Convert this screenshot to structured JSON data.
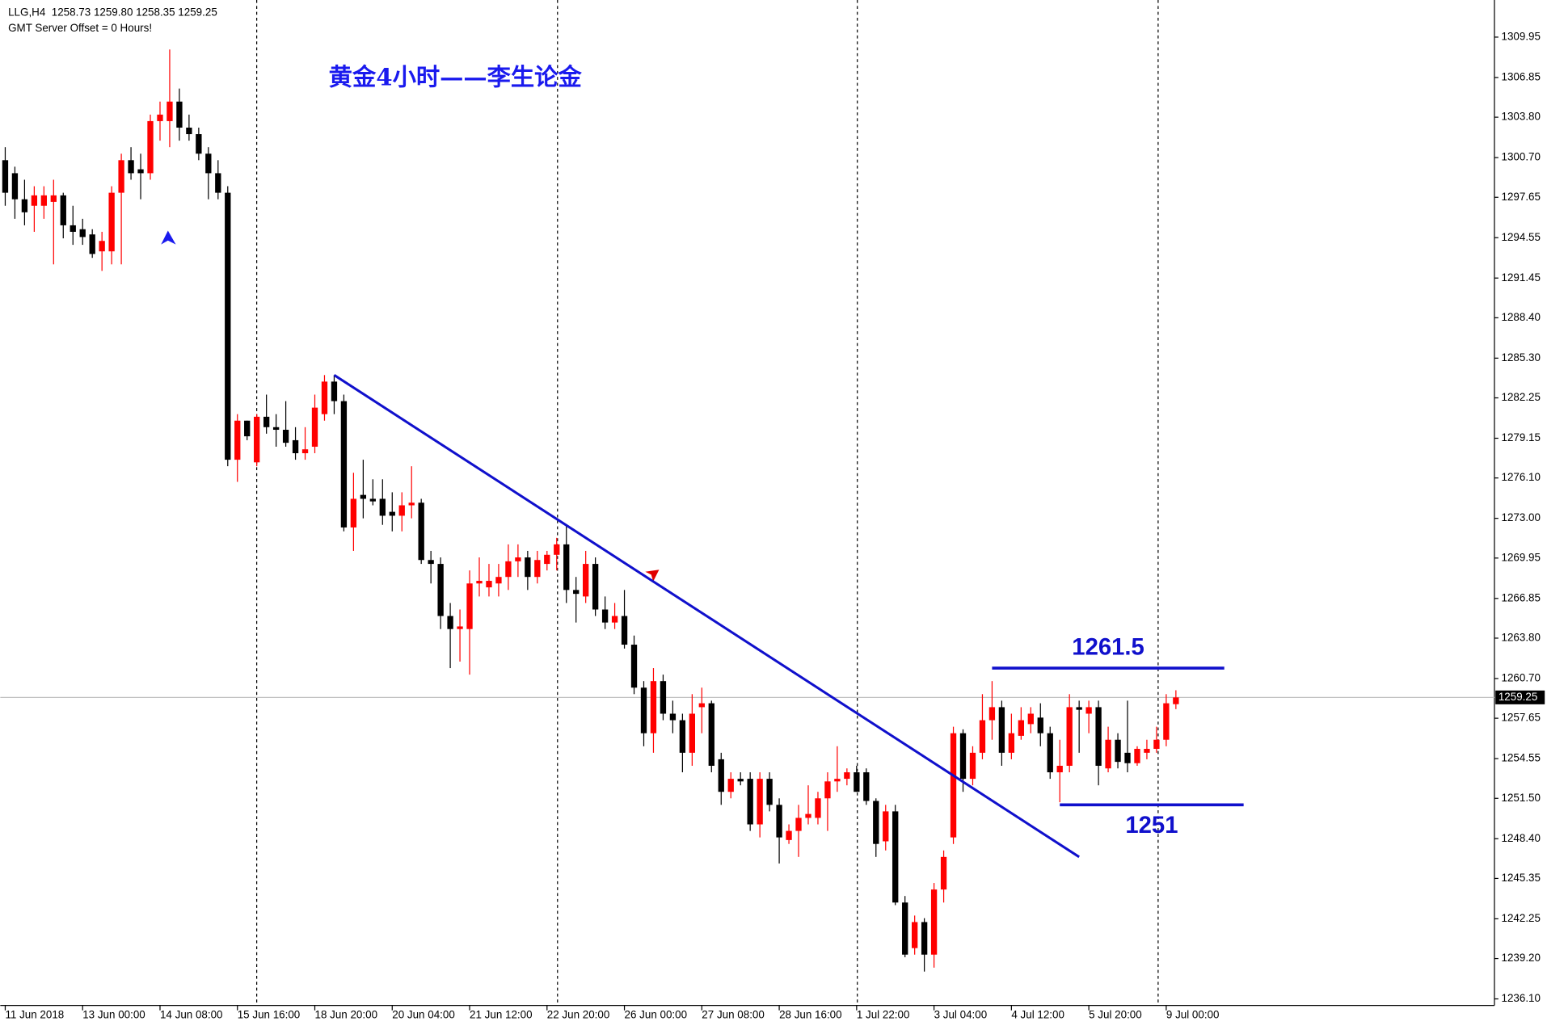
{
  "chart_data": {
    "type": "candlestick",
    "header": "LLG,H4  1258.73 1259.80 1258.35 1259.25",
    "subheader": "GMT Server Offset = 0 Hours!",
    "title": "黄金4小时——李生论金",
    "up_color": "#ff0000",
    "down_color": "#000000",
    "line_color": "#1010cc",
    "categories": [
      "11 Jun 2018",
      null,
      null,
      null,
      null,
      null,
      null,
      null,
      "13 Jun 00:00",
      null,
      null,
      null,
      null,
      null,
      null,
      null,
      "14 Jun 08:00",
      null,
      null,
      null,
      null,
      null,
      null,
      null,
      "15 Jun 16:00",
      null,
      null,
      null,
      null,
      null,
      null,
      null,
      "18 Jun 20:00",
      null,
      null,
      null,
      null,
      null,
      null,
      null,
      "20 Jun 04:00",
      null,
      null,
      null,
      null,
      null,
      null,
      null,
      "21 Jun 12:00",
      null,
      null,
      null,
      null,
      null,
      null,
      null,
      "22 Jun 20:00",
      null,
      null,
      null,
      null,
      null,
      null,
      null,
      "26 Jun 00:00",
      null,
      null,
      null,
      null,
      null,
      null,
      null,
      "27 Jun 08:00",
      null,
      null,
      null,
      null,
      null,
      null,
      null,
      "28 Jun 16:00",
      null,
      null,
      null,
      null,
      null,
      null,
      null,
      "1 Jul 22:00",
      null,
      null,
      null,
      null,
      null,
      null,
      null,
      "3 Jul 04:00",
      null,
      null,
      null,
      null,
      null,
      null,
      null,
      "4 Jul 12:00",
      null,
      null,
      null,
      null,
      null,
      null,
      null,
      "5 Jul 20:00",
      null,
      null,
      null,
      null,
      null,
      null,
      null,
      "9 Jul 00:00",
      null
    ],
    "open": [
      1300.5,
      1299.5,
      1297.5,
      1297,
      1297,
      1297.3,
      1297.8,
      1295.5,
      1295.2,
      1294.8,
      1293.5,
      1293.5,
      1298,
      1300.5,
      1299.8,
      1299.5,
      1303.5,
      1303.5,
      1305,
      1303,
      1302.5,
      1301,
      1299.5,
      1298,
      1277.5,
      1280.5,
      1277.3,
      1280.8,
      1280,
      1279.8,
      1279,
      1278,
      1278.5,
      1281,
      1283.5,
      1282,
      1272.3,
      1274.8,
      1274.5,
      1274.5,
      1273.5,
      1273.2,
      1274,
      1274.2,
      1269.8,
      1269.5,
      1265.5,
      1264.5,
      1264.5,
      1268,
      1267.7,
      1268,
      1268.5,
      1269.7,
      1270,
      1268.5,
      1269.5,
      1270.2,
      1271,
      1267.5,
      1267,
      1269.5,
      1266,
      1265,
      1265.5,
      1263.3,
      1260,
      1256.5,
      1260.5,
      1258,
      1257.5,
      1255,
      1258.5,
      1258.8,
      1254.5,
      1252,
      1253,
      1253,
      1249.5,
      1253,
      1251,
      1248.3,
      1249,
      1250,
      1250,
      1251.5,
      1252.8,
      1253,
      1253.5,
      1253.5,
      1251.3,
      1248.2,
      1250.5,
      1243.5,
      1240,
      1242,
      1239.5,
      1244.5,
      1248.5,
      1256.5,
      1253,
      1255,
      1257.5,
      1258.5,
      1255,
      1256.3,
      1257.2,
      1257.7,
      1256.5,
      1253.5,
      1254,
      1258.5,
      1258,
      1258.5,
      1253.8,
      1256,
      1255,
      1254.2,
      1255,
      1255.3,
      1256,
      1258.73
    ],
    "high": [
      1301.5,
      1300,
      1299,
      1298.5,
      1298.5,
      1299,
      1298,
      1297,
      1296,
      1295.2,
      1295,
      1298.5,
      1301,
      1301.5,
      1301,
      1304,
      1305,
      1309,
      1306,
      1304,
      1303,
      1301.5,
      1300.5,
      1298.5,
      1281,
      1280.5,
      1281,
      1282.5,
      1281,
      1282,
      1280,
      1280,
      1282.5,
      1284,
      1284,
      1282.5,
      1276.5,
      1277.5,
      1276,
      1276,
      1275,
      1275,
      1277,
      1274.5,
      1270.5,
      1270,
      1266.5,
      1266,
      1269,
      1270,
      1269.5,
      1269.5,
      1271,
      1271,
      1270.5,
      1270.5,
      1270.5,
      1271.5,
      1272.5,
      1268.5,
      1270.5,
      1270,
      1267,
      1266.5,
      1267.5,
      1264,
      1260.5,
      1261.5,
      1261,
      1259,
      1258,
      1259.5,
      1260,
      1259,
      1255,
      1253.5,
      1253.5,
      1253.5,
      1253.5,
      1253.5,
      1251.5,
      1249.5,
      1251,
      1252.5,
      1252,
      1253.5,
      1255.5,
      1253.8,
      1254,
      1253.8,
      1251.5,
      1251,
      1251,
      1244,
      1242.5,
      1242.3,
      1245,
      1247.5,
      1257,
      1256.8,
      1255.5,
      1259.5,
      1260.5,
      1259,
      1258,
      1258.5,
      1258.5,
      1258.8,
      1257,
      1256,
      1259.5,
      1259,
      1259,
      1259,
      1257,
      1256.5,
      1259,
      1255.5,
      1256,
      1257,
      1259.5,
      1259.8
    ],
    "low": [
      1297,
      1296,
      1295.5,
      1295,
      1296,
      1292.5,
      1294.5,
      1294,
      1294,
      1293,
      1292,
      1292.5,
      1292.5,
      1299,
      1297.5,
      1299,
      1302,
      1301.5,
      1302,
      1302,
      1300.5,
      1297.5,
      1297.5,
      1277,
      1275.8,
      1279,
      1277,
      1279.5,
      1278.5,
      1278.5,
      1277.5,
      1277.5,
      1278,
      1280.5,
      1281,
      1272,
      1270.5,
      1273,
      1274,
      1272.5,
      1272,
      1272,
      1273,
      1269.5,
      1268,
      1264.5,
      1261.5,
      1262,
      1261,
      1267,
      1267,
      1267,
      1267.5,
      1268.5,
      1267.5,
      1268,
      1269,
      1269,
      1266.5,
      1265,
      1266.5,
      1265.5,
      1264.5,
      1264.5,
      1263,
      1259.5,
      1255.5,
      1255,
      1257.5,
      1256.5,
      1253.5,
      1254,
      1256.5,
      1253.5,
      1251,
      1251.5,
      1252.5,
      1249,
      1248.5,
      1250.5,
      1246.5,
      1248,
      1247,
      1249.5,
      1249.5,
      1249,
      1252,
      1252.5,
      1252,
      1251,
      1247,
      1247.5,
      1243.3,
      1239.3,
      1239.5,
      1238.2,
      1238.5,
      1243.5,
      1248,
      1252,
      1252.5,
      1254.5,
      1256,
      1254,
      1254.5,
      1256,
      1256.5,
      1255.5,
      1253,
      1251.2,
      1253.5,
      1255,
      1256.5,
      1252.5,
      1253.5,
      1253.8,
      1253.5,
      1254,
      1254.5,
      1255,
      1255.5,
      1258.35
    ],
    "close": [
      1298,
      1297.5,
      1296.5,
      1297.8,
      1297.8,
      1297.8,
      1295.5,
      1295,
      1294.6,
      1293.3,
      1294.3,
      1298,
      1300.5,
      1299.5,
      1299.5,
      1303.5,
      1304,
      1305,
      1303,
      1302.5,
      1301,
      1299.5,
      1298,
      1277.5,
      1280.5,
      1279.3,
      1280.8,
      1280,
      1279.8,
      1278.8,
      1278,
      1278.3,
      1281.5,
      1283.5,
      1282,
      1272.3,
      1274.5,
      1274.5,
      1274.3,
      1273.2,
      1273.2,
      1274,
      1274.2,
      1269.8,
      1269.5,
      1265.5,
      1264.5,
      1264.7,
      1268,
      1268.2,
      1268.2,
      1268.5,
      1269.7,
      1270,
      1268.5,
      1269.8,
      1270.2,
      1271,
      1267.5,
      1267.2,
      1269.5,
      1266,
      1265,
      1265.5,
      1263.3,
      1260,
      1256.5,
      1260.5,
      1258,
      1257.5,
      1255,
      1258,
      1258.8,
      1254,
      1252,
      1253,
      1252.8,
      1249.5,
      1253,
      1251,
      1248.5,
      1249,
      1250,
      1250.3,
      1251.5,
      1252.8,
      1253,
      1253.5,
      1252,
      1251.3,
      1248,
      1250.5,
      1243.5,
      1239.5,
      1242,
      1239.5,
      1244.5,
      1247,
      1256.5,
      1253,
      1255,
      1257.5,
      1258.5,
      1255,
      1256.5,
      1257.5,
      1258,
      1256.5,
      1253.5,
      1254,
      1258.5,
      1258.3,
      1258.5,
      1254,
      1256,
      1254.3,
      1254.2,
      1255.3,
      1255.3,
      1256,
      1258.8,
      1259.25
    ],
    "ylim": [
      1235.6,
      1312.8
    ],
    "yticks": [
      1309.95,
      1306.85,
      {
        "value": 1303.8,
        "label": "1303.80"
      },
      {
        "value": 1300.7,
        "label": "1300.70"
      },
      1297.65,
      1294.55,
      1291.45,
      {
        "value": 1288.4,
        "label": "1288.40"
      },
      {
        "value": 1285.3,
        "label": "1285.30"
      },
      1282.25,
      1279.15,
      {
        "value": 1276.1,
        "label": "1276.10"
      },
      {
        "value": 1273,
        "label": "1273.00"
      },
      1269.95,
      1266.85,
      {
        "value": 1263.8,
        "label": "1263.80"
      },
      {
        "value": 1260.7,
        "label": "1260.70"
      },
      1257.65,
      1254.55,
      {
        "value": 1251.5,
        "label": "1251.50"
      },
      {
        "value": 1248.4,
        "label": "1248.40"
      },
      1245.35,
      1242.25,
      {
        "value": 1239.2,
        "label": "1239.20"
      },
      {
        "value": 1236.1,
        "label": "1236.10"
      }
    ],
    "last_price": 1259.25,
    "trendline": {
      "x": [
        34,
        111
      ],
      "y": [
        1284,
        1247
      ]
    },
    "levels": [
      {
        "value": 1261.5,
        "x": [
          102,
          126
        ]
      },
      {
        "value": 1251,
        "x": [
          109,
          128
        ]
      }
    ]
  }
}
